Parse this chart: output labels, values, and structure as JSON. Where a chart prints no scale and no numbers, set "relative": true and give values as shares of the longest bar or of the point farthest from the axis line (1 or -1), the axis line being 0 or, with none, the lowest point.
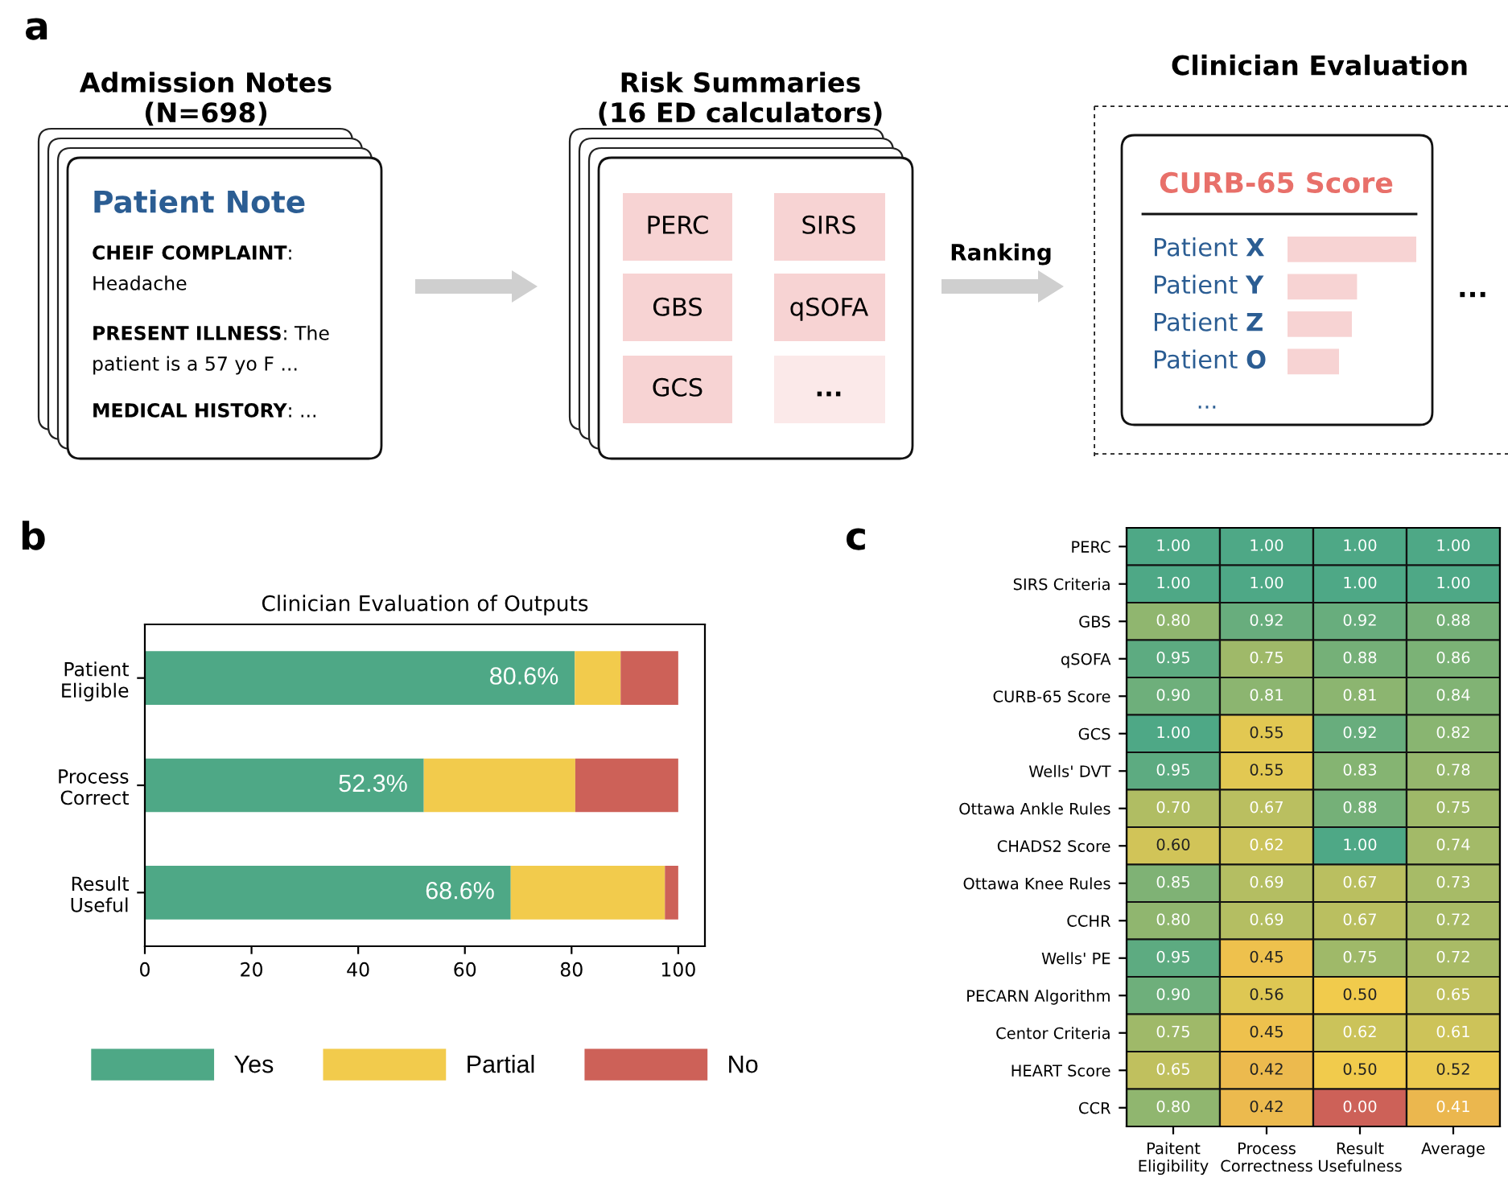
{
  "chart_data": [
    {
      "type": "other",
      "annotations": [
        "a",
        "Admission Notes\n(N=698)",
        "Patient Note",
        "CHEIF COMPLAINT",
        ":",
        "Headache",
        "PRESENT ILLNESS",
        ": The",
        "patient is a 57 yo F ...",
        "MEDICAL HISTORY",
        ": ...",
        "Risk Summaries\n(16 ED calculators)",
        "PERC",
        "SIRS",
        "GBS",
        "qSOFA",
        "GCS",
        "...",
        "Ranking",
        "Clinician Evaluation",
        "CURB-65 Score",
        "...",
        "..."
      ]
    },
    {
      "type": "bar",
      "orientation": "horizontal",
      "relative": true,
      "categories": [
        "Patient X",
        "Patient Y",
        "Patient Z",
        "Patient O"
      ],
      "values": [
        1,
        0.54,
        0.5,
        0.4
      ],
      "color": "#f7d3d3"
    },
    {
      "type": "bar",
      "orientation": "horizontal",
      "stacked": true,
      "title": "Clinician Evaluation of Outputs",
      "categories": [
        "Patient\nEligible",
        "Process\nCorrect",
        "Result\nUseful"
      ],
      "series": [
        {
          "name": "Yes",
          "color": "#4ea886",
          "values": [
            80.6,
            52.3,
            68.6
          ],
          "value_labels": [
            "80.6%",
            "52.3%",
            "68.6%"
          ]
        },
        {
          "name": "Partial",
          "color": "#f2cb4c",
          "values": [
            8.6,
            28.4,
            28.9
          ]
        },
        {
          "name": "No",
          "color": "#cd6158",
          "values": [
            10.8,
            19.3,
            2.5
          ]
        }
      ],
      "xlim": [
        0,
        105
      ],
      "xticks": [
        0,
        20,
        40,
        60,
        80,
        100
      ],
      "legend": "bottom",
      "annotations": [
        "b"
      ]
    },
    {
      "type": "heatmap",
      "annotations": [
        "c"
      ],
      "categories": [
        "Paitent\nEligibility",
        "Process\nCorrectness",
        "Result\nUsefulness",
        "Average"
      ],
      "y_categories": [
        "PERC",
        "SIRS Criteria",
        "GBS",
        "qSOFA",
        "CURB-65 Score",
        "GCS",
        "Wells' DVT",
        "Ottawa Ankle Rules",
        "CHADS2 Score",
        "Ottawa Knee Rules",
        "CCHR",
        "Wells' PE",
        "PECARN Algorithm",
        "Centor Criteria",
        "HEART Score",
        "CCR"
      ],
      "cells": [
        [
          1.0,
          1.0,
          1.0,
          1.0
        ],
        [
          1.0,
          1.0,
          1.0,
          1.0
        ],
        [
          0.8,
          0.92,
          0.92,
          0.88
        ],
        [
          0.95,
          0.75,
          0.88,
          0.86
        ],
        [
          0.9,
          0.81,
          0.81,
          0.84
        ],
        [
          1.0,
          0.55,
          0.92,
          0.82
        ],
        [
          0.95,
          0.55,
          0.83,
          0.78
        ],
        [
          0.7,
          0.67,
          0.88,
          0.75
        ],
        [
          0.6,
          0.62,
          1.0,
          0.74
        ],
        [
          0.85,
          0.69,
          0.67,
          0.73
        ],
        [
          0.8,
          0.69,
          0.67,
          0.72
        ],
        [
          0.95,
          0.45,
          0.75,
          0.72
        ],
        [
          0.9,
          0.56,
          0.5,
          0.65
        ],
        [
          0.75,
          0.45,
          0.62,
          0.61
        ],
        [
          0.65,
          0.42,
          0.5,
          0.52
        ],
        [
          0.8,
          0.42,
          0.0,
          0.41
        ]
      ],
      "cell_labels": [
        [
          "1.00",
          "1.00",
          "1.00",
          "1.00"
        ],
        [
          "1.00",
          "1.00",
          "1.00",
          "1.00"
        ],
        [
          "0.80",
          "0.92",
          "0.92",
          "0.88"
        ],
        [
          "0.95",
          "0.75",
          "0.88",
          "0.86"
        ],
        [
          "0.90",
          "0.81",
          "0.81",
          "0.84"
        ],
        [
          "1.00",
          "0.55",
          "0.92",
          "0.82"
        ],
        [
          "0.95",
          "0.55",
          "0.83",
          "0.78"
        ],
        [
          "0.70",
          "0.67",
          "0.88",
          "0.75"
        ],
        [
          "0.60",
          "0.62",
          "1.00",
          "0.74"
        ],
        [
          "0.85",
          "0.69",
          "0.67",
          "0.73"
        ],
        [
          "0.80",
          "0.69",
          "0.67",
          "0.72"
        ],
        [
          "0.95",
          "0.45",
          "0.75",
          "0.72"
        ],
        [
          "0.90",
          "0.56",
          "0.50",
          "0.65"
        ],
        [
          "0.75",
          "0.45",
          "0.62",
          "0.61"
        ],
        [
          "0.65",
          "0.42",
          "0.50",
          "0.52"
        ],
        [
          "0.80",
          "0.42",
          "0.00",
          "0.41"
        ]
      ]
    }
  ]
}
